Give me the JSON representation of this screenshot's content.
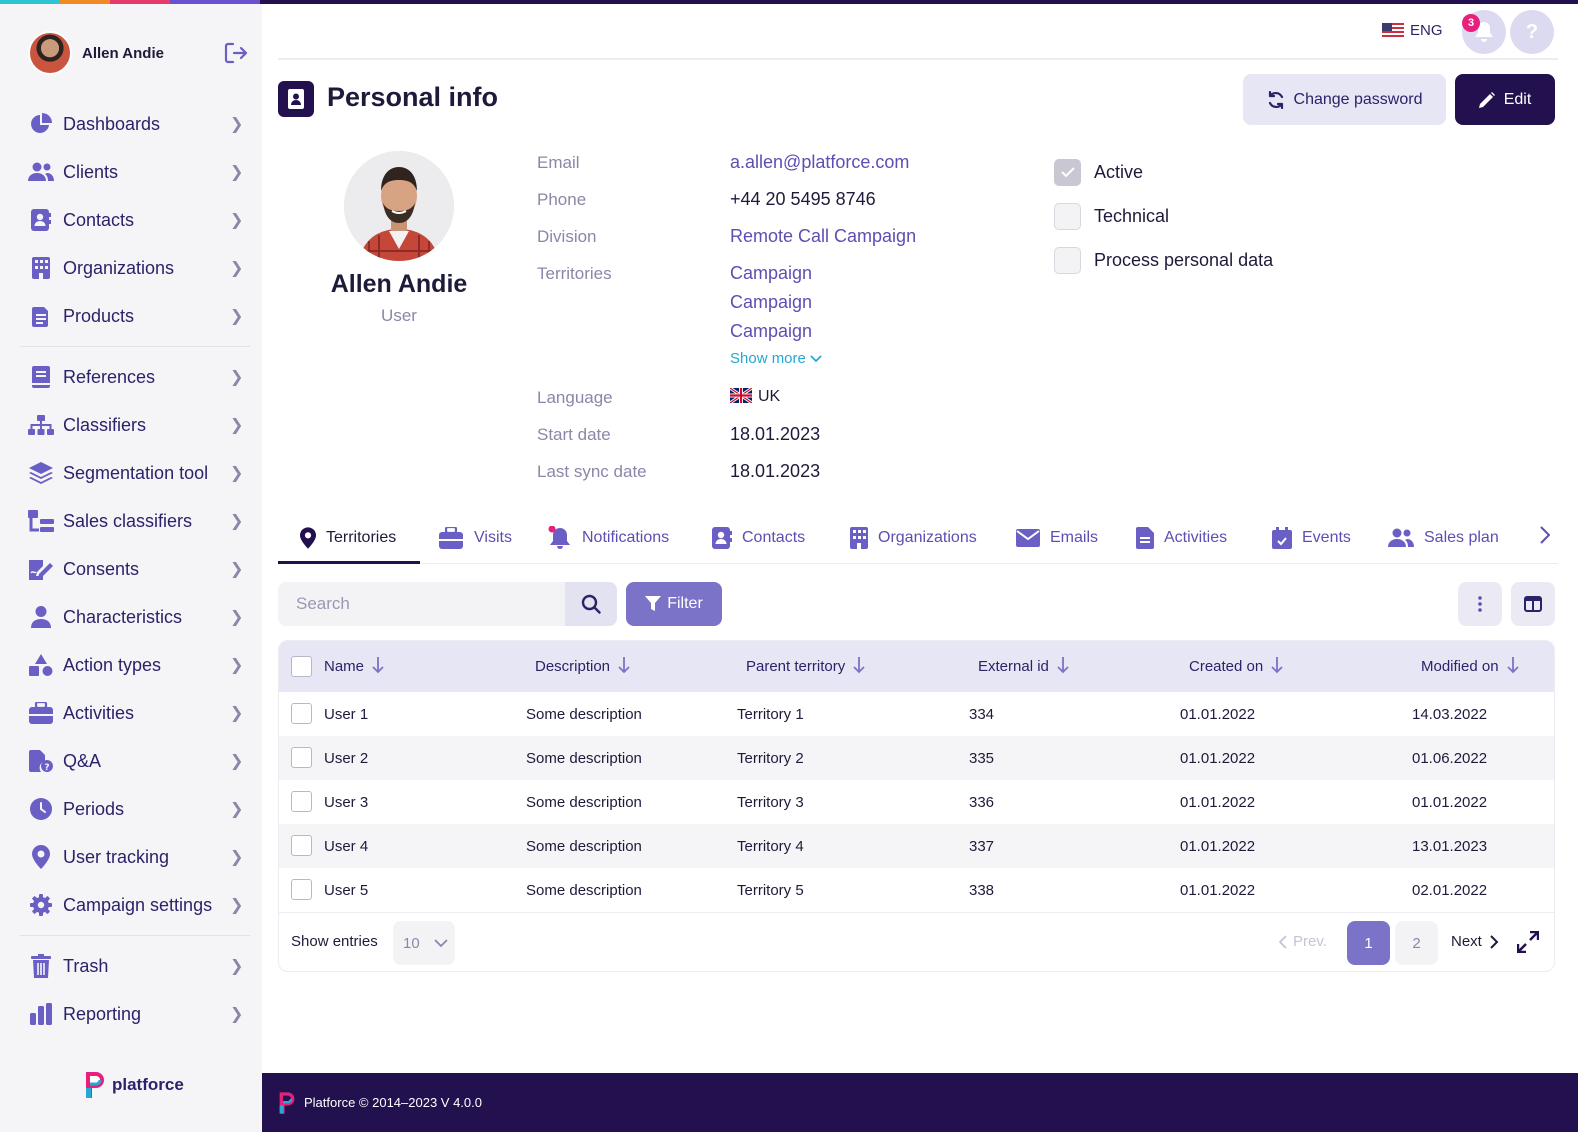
{
  "user": {
    "name": "Allen Andie",
    "role": "User"
  },
  "sidebar": {
    "groups": [
      [
        {
          "label": "Dashboards",
          "icon": "pie-chart-icon"
        },
        {
          "label": "Clients",
          "icon": "users-icon"
        },
        {
          "label": "Contacts",
          "icon": "contact-card-icon"
        },
        {
          "label": "Organizations",
          "icon": "building-icon"
        },
        {
          "label": "Products",
          "icon": "product-icon"
        }
      ],
      [
        {
          "label": "References",
          "icon": "book-icon"
        },
        {
          "label": "Classifiers",
          "icon": "hierarchy-icon"
        },
        {
          "label": "Segmentation tool",
          "icon": "layers-icon"
        },
        {
          "label": "Sales classifiers",
          "icon": "sales-classifier-icon"
        },
        {
          "label": "Consents",
          "icon": "signature-icon"
        },
        {
          "label": "Characteristics",
          "icon": "person-icon"
        },
        {
          "label": "Action types",
          "icon": "shapes-icon"
        },
        {
          "label": "Activities",
          "icon": "briefcase-icon"
        },
        {
          "label": "Q&A",
          "icon": "qa-icon"
        },
        {
          "label": "Periods",
          "icon": "clock-icon"
        },
        {
          "label": "User tracking",
          "icon": "location-pin-icon"
        },
        {
          "label": "Campaign settings",
          "icon": "gear-icon"
        }
      ],
      [
        {
          "label": "Trash",
          "icon": "trash-icon"
        },
        {
          "label": "Reporting",
          "icon": "bar-chart-icon"
        }
      ]
    ],
    "brand": "platforce"
  },
  "topbar": {
    "language": "ENG",
    "notifications_count": "3",
    "help": "?"
  },
  "page": {
    "title": "Personal info",
    "change_password": "Change password",
    "edit": "Edit"
  },
  "info": {
    "email_label": "Email",
    "email": "a.allen@platforce.com",
    "phone_label": "Phone",
    "phone": "+44 20 5495 8746",
    "division_label": "Division",
    "division": "Remote Call Campaign",
    "territories_label": "Territories",
    "territories": [
      "Campaign",
      "Campaign",
      "Campaign"
    ],
    "show_more": "Show more",
    "language_label": "Language",
    "language": "UK",
    "start_date_label": "Start date",
    "start_date": "18.01.2023",
    "last_sync_label": "Last sync date",
    "last_sync": "18.01.2023"
  },
  "flags": [
    {
      "label": "Active",
      "checked": true
    },
    {
      "label": "Technical",
      "checked": false
    },
    {
      "label": "Process personal data",
      "checked": false
    }
  ],
  "tabs": [
    "Territories",
    "Visits",
    "Notifications",
    "Contacts",
    "Organizations",
    "Emails",
    "Activities",
    "Events",
    "Sales plan"
  ],
  "search": {
    "placeholder": "Search",
    "filter": "Filter"
  },
  "table": {
    "columns": [
      "Name",
      "Description",
      "Parent territory",
      "External id",
      "Created on",
      "Modified on"
    ],
    "rows": [
      [
        "User 1",
        "Some description",
        "Territory 1",
        "334",
        "01.01.2022",
        "14.03.2022"
      ],
      [
        "User 2",
        "Some description",
        "Territory 2",
        "335",
        "01.01.2022",
        "01.06.2022"
      ],
      [
        "User 3",
        "Some description",
        "Territory 3",
        "336",
        "01.01.2022",
        "01.01.2022"
      ],
      [
        "User 4",
        "Some description",
        "Territory 4",
        "337",
        "01.01.2022",
        "13.01.2023"
      ],
      [
        "User 5",
        "Some description",
        "Territory 5",
        "338",
        "01.01.2022",
        "02.01.2022"
      ]
    ],
    "show_entries": "Show entries",
    "entries_value": "10",
    "prev": "Prev.",
    "pages": [
      "1",
      "2"
    ],
    "next": "Next"
  },
  "footer": {
    "text": "Platforce © 2014–2023 V 4.0.0"
  }
}
